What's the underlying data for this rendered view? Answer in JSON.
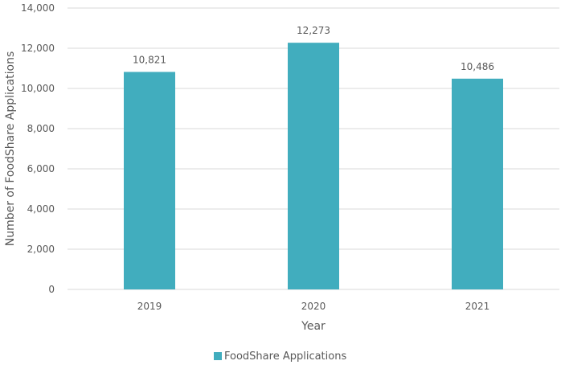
{
  "chart_data": {
    "type": "bar",
    "categories": [
      "2019",
      "2020",
      "2021"
    ],
    "series": [
      {
        "name": "FoodShare Applications",
        "values": [
          10821,
          12273,
          10486
        ],
        "value_labels": [
          "10,821",
          "12,273",
          "10,486"
        ],
        "color": "#41ADBE"
      }
    ],
    "title": "",
    "xlabel": "Year",
    "ylabel": "Number of FoodShare Applications",
    "ylim": [
      0,
      14000
    ],
    "yticks": [
      0,
      2000,
      4000,
      6000,
      8000,
      10000,
      12000,
      14000
    ],
    "ytick_labels": [
      "0",
      "2,000",
      "4,000",
      "6,000",
      "8,000",
      "10,000",
      "12,000",
      "14,000"
    ],
    "grid": true,
    "gridline_color": "#D9D9D9",
    "legend_position": "bottom"
  }
}
